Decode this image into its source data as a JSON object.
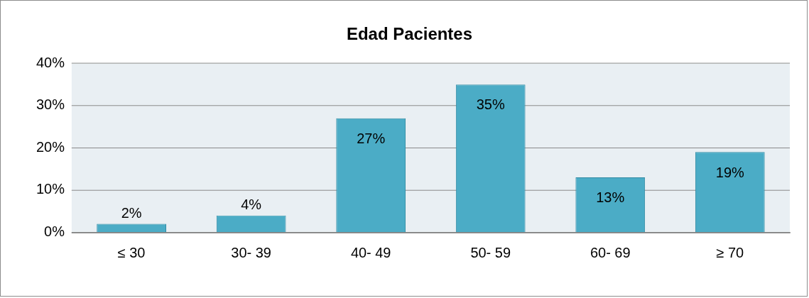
{
  "chart_data": {
    "type": "bar",
    "title": "Edad Pacientes",
    "categories": [
      "≤ 30",
      "30- 39",
      "40- 49",
      "50- 59",
      "60- 69",
      "≥ 70"
    ],
    "values": [
      2,
      4,
      27,
      35,
      13,
      19
    ],
    "color": "#4bacc6",
    "ylim": [
      0,
      40
    ],
    "yticks": [
      {
        "value": 0,
        "label": "0%"
      },
      {
        "value": 10,
        "label": "10%"
      },
      {
        "value": 20,
        "label": "20%"
      },
      {
        "value": 30,
        "label": "30%"
      },
      {
        "value": 40,
        "label": "40%"
      }
    ],
    "value_labels": [
      "2%",
      "4%",
      "27%",
      "35%",
      "13%",
      "19%"
    ],
    "grid": "y"
  }
}
